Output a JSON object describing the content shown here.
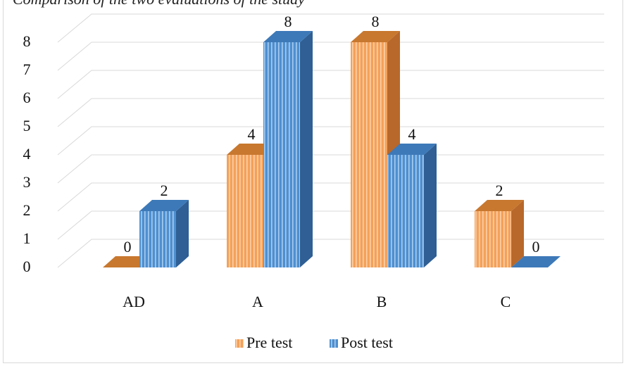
{
  "caption": "Comparison of the two evaluations of the study",
  "chart_data": {
    "type": "bar",
    "title": "",
    "xlabel": "",
    "ylabel": "",
    "categories": [
      "AD",
      "A",
      "B",
      "C"
    ],
    "series": [
      {
        "name": "Pre test",
        "values": [
          0,
          4,
          8,
          2
        ],
        "color": "#f4a15a"
      },
      {
        "name": "Post test",
        "values": [
          2,
          8,
          4,
          0
        ],
        "color": "#5b9bd5"
      }
    ],
    "ylim": [
      0,
      8
    ],
    "yticks": [
      0,
      1,
      2,
      3,
      4,
      5,
      6,
      7,
      8
    ],
    "grid": true,
    "legend": "bottom",
    "style": "3d-column",
    "data_labels": true
  }
}
